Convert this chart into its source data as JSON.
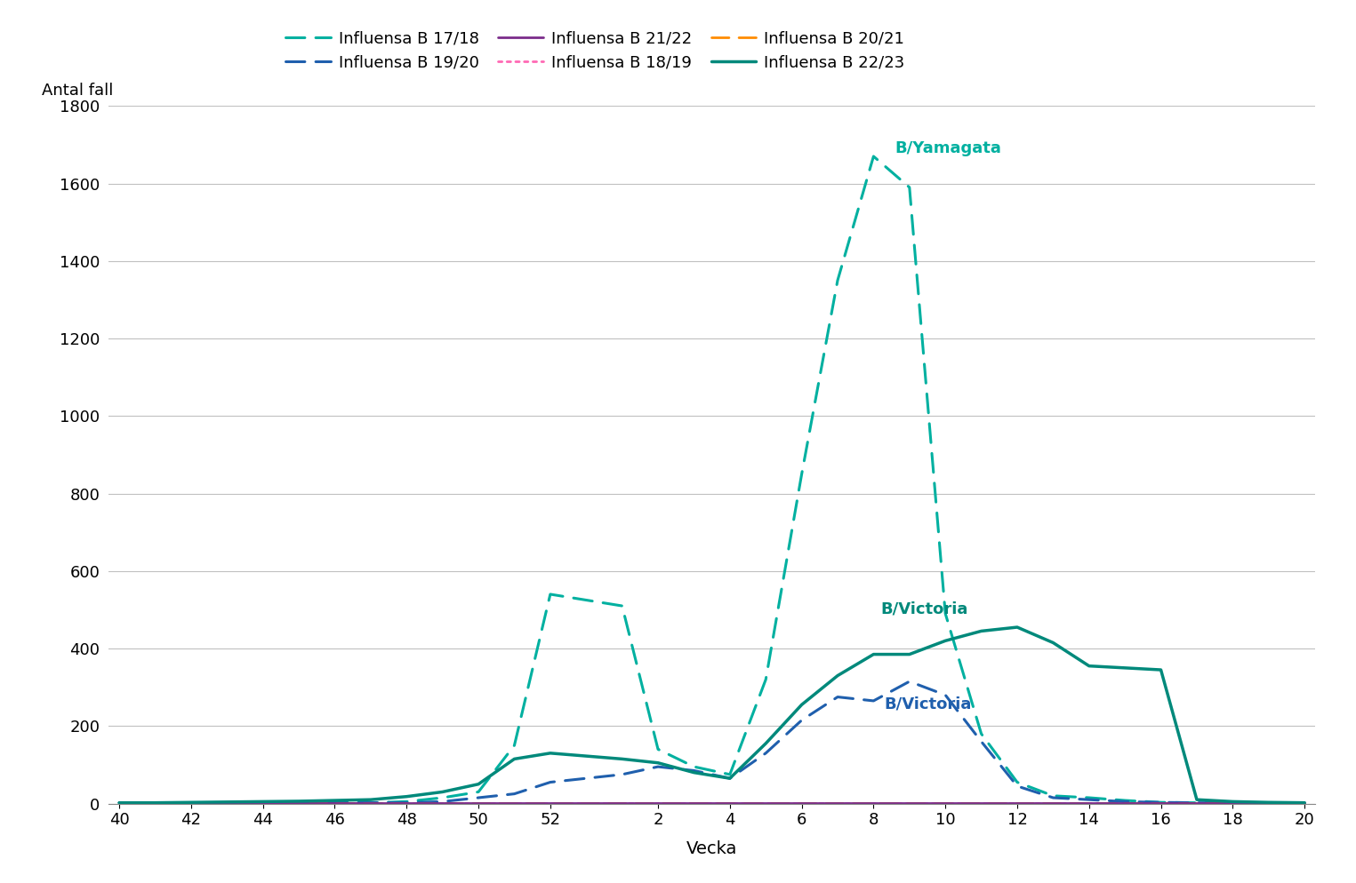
{
  "xlabel": "Vecka",
  "ylabel": "Antal fall",
  "ylim": [
    0,
    1800
  ],
  "yticks": [
    0,
    200,
    400,
    600,
    800,
    1000,
    1200,
    1400,
    1600,
    1800
  ],
  "xtick_labels": [
    "40",
    "42",
    "44",
    "46",
    "48",
    "50",
    "52",
    "2",
    "4",
    "6",
    "8",
    "10",
    "12",
    "14",
    "16",
    "18",
    "20"
  ],
  "series": [
    {
      "label": "Influensa B 17/18",
      "color": "#00B0A0",
      "linestyle": "dashed",
      "linewidth": 2.2,
      "x": [
        40,
        41,
        42,
        43,
        44,
        45,
        46,
        47,
        48,
        49,
        50,
        51,
        52,
        1,
        2,
        3,
        4,
        5,
        6,
        7,
        8,
        9,
        10,
        11,
        12,
        13,
        14,
        15,
        16,
        17,
        18,
        19,
        20
      ],
      "y": [
        2,
        2,
        2,
        2,
        2,
        2,
        2,
        2,
        5,
        15,
        30,
        150,
        540,
        510,
        140,
        95,
        75,
        320,
        850,
        1350,
        1670,
        1590,
        490,
        180,
        55,
        20,
        15,
        8,
        3,
        2,
        2,
        1,
        1
      ]
    },
    {
      "label": "Influensa B 18/19",
      "color": "#FF69B4",
      "linestyle": "dotted",
      "linewidth": 2.0,
      "x": [
        40,
        41,
        42,
        43,
        44,
        45,
        46,
        47,
        48,
        49,
        50,
        51,
        52,
        1,
        2,
        3,
        4,
        5,
        6,
        7,
        8,
        9,
        10,
        11,
        12,
        13,
        14,
        15,
        16,
        17,
        18,
        19,
        20
      ],
      "y": [
        2,
        2,
        2,
        2,
        2,
        2,
        2,
        2,
        2,
        2,
        2,
        2,
        2,
        2,
        2,
        2,
        2,
        2,
        2,
        2,
        2,
        2,
        2,
        2,
        2,
        2,
        2,
        2,
        2,
        2,
        2,
        2,
        2
      ]
    },
    {
      "label": "Influensa B 19/20",
      "color": "#1F5FAD",
      "linestyle": "dashed",
      "linewidth": 2.2,
      "x": [
        40,
        41,
        42,
        43,
        44,
        45,
        46,
        47,
        48,
        49,
        50,
        51,
        52,
        1,
        2,
        3,
        4,
        5,
        6,
        7,
        8,
        9,
        10,
        11,
        12,
        13,
        14,
        15,
        16,
        17,
        18,
        19,
        20
      ],
      "y": [
        2,
        2,
        2,
        2,
        2,
        2,
        2,
        2,
        2,
        5,
        15,
        25,
        55,
        75,
        95,
        85,
        65,
        130,
        215,
        275,
        265,
        315,
        280,
        160,
        45,
        15,
        10,
        5,
        3,
        2,
        2,
        2,
        2
      ]
    },
    {
      "label": "Influensa B 20/21",
      "color": "#FF8C00",
      "linestyle": "dashed",
      "linewidth": 2.0,
      "x": [
        40,
        41,
        42,
        43,
        44,
        45,
        46,
        47,
        48,
        49,
        50,
        51,
        52,
        1,
        2,
        3,
        4,
        5,
        6,
        7,
        8,
        9,
        10,
        11,
        12,
        13,
        14,
        15,
        16,
        17,
        18,
        19,
        20
      ],
      "y": [
        2,
        2,
        2,
        2,
        2,
        2,
        2,
        2,
        2,
        2,
        2,
        2,
        2,
        2,
        2,
        2,
        2,
        2,
        2,
        2,
        2,
        2,
        2,
        2,
        2,
        2,
        2,
        2,
        2,
        2,
        2,
        2,
        2
      ]
    },
    {
      "label": "Influensa B 21/22",
      "color": "#7B2D8B",
      "linestyle": "solid",
      "linewidth": 2.0,
      "x": [
        40,
        41,
        42,
        43,
        44,
        45,
        46,
        47,
        48,
        49,
        50,
        51,
        52,
        1,
        2,
        3,
        4,
        5,
        6,
        7,
        8,
        9,
        10,
        11,
        12,
        13,
        14,
        15,
        16,
        17,
        18,
        19,
        20
      ],
      "y": [
        2,
        2,
        2,
        2,
        2,
        2,
        2,
        2,
        2,
        2,
        2,
        2,
        2,
        2,
        2,
        2,
        2,
        2,
        2,
        2,
        2,
        2,
        2,
        2,
        2,
        2,
        2,
        2,
        2,
        2,
        2,
        2,
        2
      ]
    },
    {
      "label": "Influensa B 22/23",
      "color": "#00897B",
      "linestyle": "solid",
      "linewidth": 2.5,
      "x": [
        40,
        41,
        42,
        43,
        44,
        45,
        46,
        47,
        48,
        49,
        50,
        51,
        52,
        1,
        2,
        3,
        4,
        5,
        6,
        7,
        8,
        9,
        10,
        11,
        12,
        13,
        14,
        15,
        16,
        17,
        18,
        19,
        20
      ],
      "y": [
        2,
        2,
        3,
        4,
        5,
        6,
        8,
        10,
        18,
        30,
        50,
        115,
        130,
        115,
        105,
        80,
        65,
        155,
        255,
        330,
        385,
        385,
        420,
        445,
        455,
        415,
        355,
        350,
        345,
        10,
        5,
        3,
        2
      ]
    }
  ],
  "annotations": [
    {
      "text": "B/Yamagata",
      "week": 8.6,
      "y": 1680,
      "color": "#00B0A0",
      "fontsize": 13,
      "bold": true
    },
    {
      "text": "B/Victoria",
      "week": 8.2,
      "y": 490,
      "color": "#00897B",
      "fontsize": 13,
      "bold": true
    },
    {
      "text": "B/Victoria",
      "week": 8.3,
      "y": 245,
      "color": "#1F5FAD",
      "fontsize": 13,
      "bold": true
    }
  ]
}
